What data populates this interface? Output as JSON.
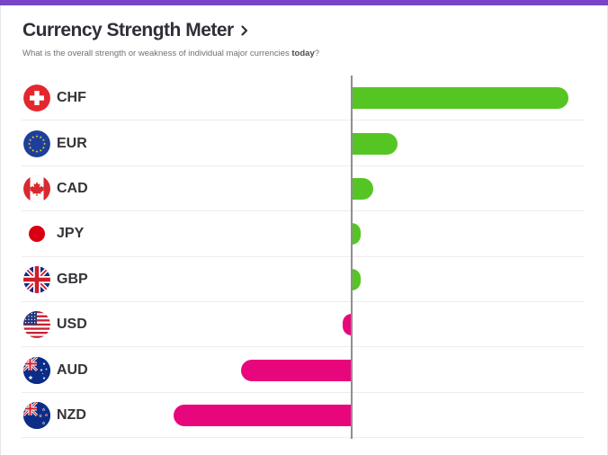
{
  "header": {
    "title": "Currency Strength Meter",
    "subtitle_main": "What is the overall strength or weakness of individual major currencies ",
    "subtitle_emph": "today",
    "subtitle_end": "?"
  },
  "colors": {
    "accent": "#7a44c9",
    "positive": "#55c523",
    "negative": "#e8067d"
  },
  "chart_data": {
    "type": "bar",
    "orientation": "horizontal",
    "categories": [
      "CHF",
      "EUR",
      "CAD",
      "JPY",
      "GBP",
      "USD",
      "AUD",
      "NZD"
    ],
    "values": [
      100,
      21,
      10,
      4,
      4,
      -4,
      -51,
      -82
    ],
    "xlim": [
      -100,
      100
    ],
    "grid": false
  },
  "flags": [
    "swiss-flag-icon",
    "eu-flag-icon",
    "canada-flag-icon",
    "japan-flag-icon",
    "uk-flag-icon",
    "usa-flag-icon",
    "australia-flag-icon",
    "new-zealand-flag-icon"
  ]
}
